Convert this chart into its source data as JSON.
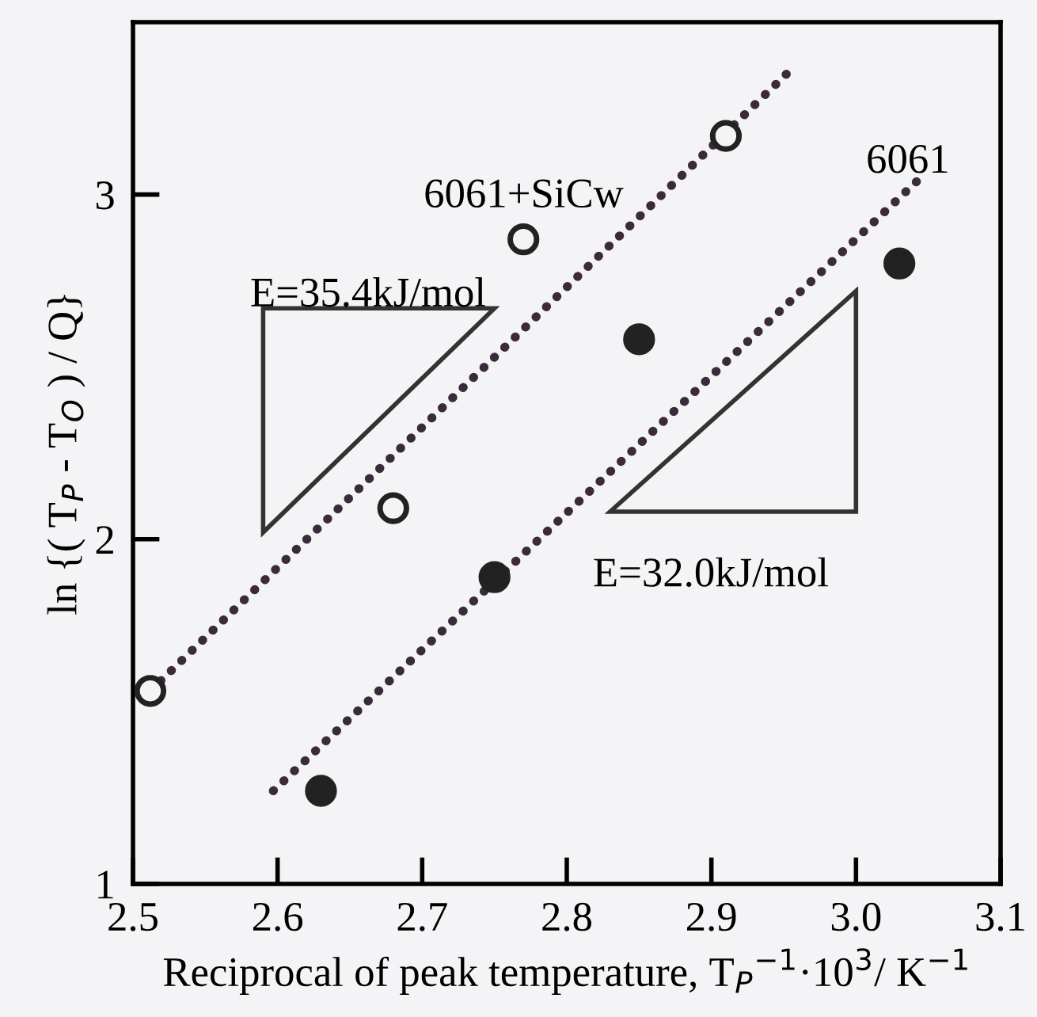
{
  "chart_data": {
    "type": "scatter",
    "xlabel": "Reciprocal of peak temperature, T$_{P}$$^{−1}$·10$^{3}$/ K$^{−1}$",
    "ylabel": "ln {( T$_{P}$ - T$_{O}$ ) / Q}",
    "xlim": [
      2.5,
      3.1
    ],
    "ylim": [
      1,
      3.5
    ],
    "xticks": [
      {
        "value": 2.5,
        "label": "2.5"
      },
      {
        "value": 2.6,
        "label": "2.6"
      },
      {
        "value": 2.7,
        "label": "2.7"
      },
      {
        "value": 2.8,
        "label": "2.8"
      },
      {
        "value": 2.9,
        "label": "2.9"
      },
      {
        "value": 3.0,
        "label": "3.0"
      },
      {
        "value": 3.1,
        "label": "3.1"
      }
    ],
    "yticks": [
      1,
      2,
      3
    ],
    "grid": false,
    "legend": false,
    "series": [
      {
        "marker": "circle",
        "color": "#f4f3f5",
        "x": [
          2.512,
          2.68,
          2.77,
          2.91
        ],
        "values": [
          1.56,
          2.09,
          2.87,
          3.17
        ]
      },
      {
        "marker": "circle",
        "color": "#222222",
        "x": [
          2.63,
          2.75,
          2.85,
          3.03
        ],
        "values": [
          1.27,
          1.89,
          2.58,
          2.8
        ]
      },
      {
        "type": "line",
        "marker": "none",
        "line_style": "dotted",
        "color": "#3a2a3a",
        "x": [
          2.512,
          2.952
        ],
        "values": [
          1.56,
          3.35
        ]
      },
      {
        "type": "line",
        "marker": "none",
        "line_style": "dotted",
        "color": "#3a2a3a",
        "x": [
          2.597,
          3.045
        ],
        "values": [
          1.27,
          3.05
        ]
      }
    ],
    "annotations": [
      "6061+SiCw",
      "6061",
      "E=35.4kJ/mol",
      "E=32.0kJ/mol"
    ]
  }
}
